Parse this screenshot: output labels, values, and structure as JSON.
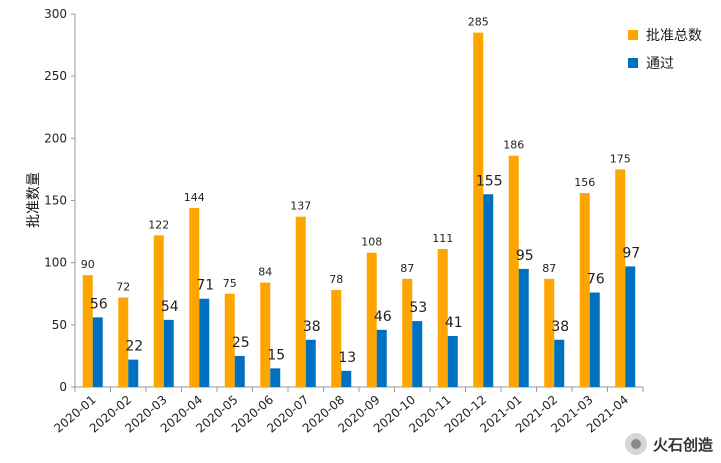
{
  "chart_data": {
    "type": "bar",
    "ylabel": "批准数量",
    "ylim": [
      0,
      300
    ],
    "yticks": [
      0,
      50,
      100,
      150,
      200,
      250,
      300
    ],
    "categories": [
      "2020-01",
      "2020-02",
      "2020-03",
      "2020-04",
      "2020-05",
      "2020-06",
      "2020-07",
      "2020-08",
      "2020-09",
      "2020-10",
      "2020-11",
      "2020-12",
      "2021-01",
      "2021-02",
      "2021-03",
      "2021-04"
    ],
    "series": [
      {
        "name": "批准总数",
        "color": "#FFA500",
        "values": [
          90,
          72,
          122,
          144,
          75,
          84,
          137,
          78,
          108,
          87,
          111,
          285,
          186,
          87,
          156,
          175
        ]
      },
      {
        "name": "通过",
        "color": "#0070C0",
        "values": [
          56,
          22,
          54,
          71,
          25,
          15,
          38,
          13,
          46,
          53,
          41,
          155,
          95,
          38,
          76,
          97
        ]
      }
    ],
    "legend_position": "top-right",
    "grid": false
  },
  "watermark": {
    "text": "火石创造",
    "icon": "wechat-logo-icon"
  }
}
